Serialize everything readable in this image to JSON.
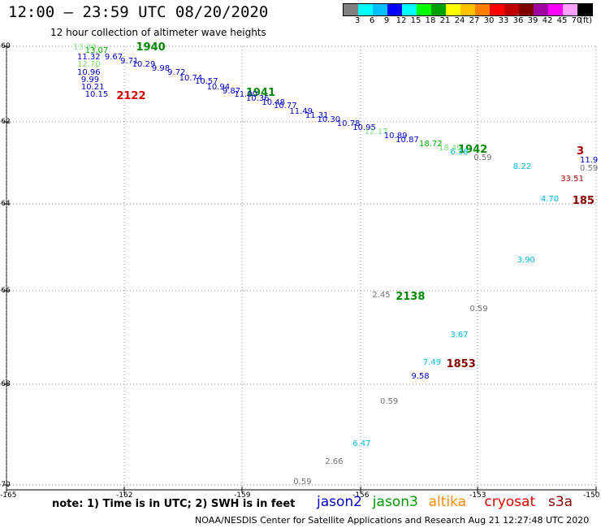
{
  "header": {
    "title": "12:00 – 23:59 UTC 08/20/2020",
    "subtitle": "12 hour collection of altimeter wave heights"
  },
  "legend": {
    "colors": [
      "#808080",
      "#00ffff",
      "#00bfff",
      "#0000ff",
      "#00ffff",
      "#00ff00",
      "#00a000",
      "#ffff00",
      "#ffc000",
      "#ff8000",
      "#ff0000",
      "#c00000",
      "#800000",
      "#a000a0",
      "#ff00ff",
      "#ffa0ff",
      "#000000"
    ],
    "labels": [
      "3",
      "6",
      "9",
      "12",
      "15",
      "18",
      "21",
      "24",
      "27",
      "30",
      "33",
      "36",
      "39",
      "42",
      "45",
      "70"
    ],
    "unit": "(ft)"
  },
  "axes": {
    "x_ticks": [
      "-165",
      "-162",
      "-159",
      "-156",
      "-153",
      "-150"
    ],
    "y_ticks": [
      "-60",
      "-62",
      "-64",
      "-66",
      "-68",
      "-70"
    ]
  },
  "annotations": [
    {
      "text": "13.80",
      "x": -163.3,
      "y": -60.05,
      "color": "#88dd88",
      "big": false
    },
    {
      "text": "13.07",
      "x": -163.0,
      "y": -60.12,
      "color": "#00aa00",
      "big": false
    },
    {
      "text": "1940",
      "x": -161.7,
      "y": -60.0,
      "color": "#008800",
      "big": true
    },
    {
      "text": "11.32",
      "x": -163.2,
      "y": -60.3,
      "color": "#0000cc",
      "big": false
    },
    {
      "text": "9.67",
      "x": -162.5,
      "y": -60.3,
      "color": "#0000cc",
      "big": false
    },
    {
      "text": "9.71",
      "x": -162.1,
      "y": -60.4,
      "color": "#0000cc",
      "big": false
    },
    {
      "text": "10.29",
      "x": -161.8,
      "y": -60.5,
      "color": "#0000cc",
      "big": false
    },
    {
      "text": "12.70",
      "x": -163.2,
      "y": -60.5,
      "color": "#77dd77",
      "big": false
    },
    {
      "text": "9.98",
      "x": -161.3,
      "y": -60.6,
      "color": "#0000cc",
      "big": false
    },
    {
      "text": "9.72",
      "x": -160.9,
      "y": -60.7,
      "color": "#0000cc",
      "big": false
    },
    {
      "text": "10.96",
      "x": -163.2,
      "y": -60.7,
      "color": "#0000cc",
      "big": false
    },
    {
      "text": "10.74",
      "x": -160.6,
      "y": -60.85,
      "color": "#0000cc",
      "big": false
    },
    {
      "text": "10.57",
      "x": -160.2,
      "y": -60.95,
      "color": "#0000cc",
      "big": false
    },
    {
      "text": "9.99",
      "x": -163.1,
      "y": -60.9,
      "color": "#0000cc",
      "big": false
    },
    {
      "text": "10.94",
      "x": -159.9,
      "y": -61.1,
      "color": "#0000cc",
      "big": false
    },
    {
      "text": "10.21",
      "x": -163.1,
      "y": -61.1,
      "color": "#0000cc",
      "big": false
    },
    {
      "text": "9.87",
      "x": -159.5,
      "y": -61.2,
      "color": "#0000cc",
      "big": false
    },
    {
      "text": "1941",
      "x": -158.9,
      "y": -61.2,
      "color": "#008800",
      "big": true
    },
    {
      "text": "11.00",
      "x": -159.2,
      "y": -61.3,
      "color": "#0000cc",
      "big": false
    },
    {
      "text": "10.15",
      "x": -163.0,
      "y": -61.3,
      "color": "#0000cc",
      "big": false
    },
    {
      "text": "2122",
      "x": -162.2,
      "y": -61.3,
      "color": "#dd0000",
      "big": true
    },
    {
      "text": "10.36",
      "x": -158.9,
      "y": -61.4,
      "color": "#0000cc",
      "big": false
    },
    {
      "text": "10.48",
      "x": -158.5,
      "y": -61.5,
      "color": "#0000cc",
      "big": false
    },
    {
      "text": "10.77",
      "x": -158.2,
      "y": -61.6,
      "color": "#0000cc",
      "big": false
    },
    {
      "text": "11.49",
      "x": -157.8,
      "y": -61.75,
      "color": "#0000cc",
      "big": false
    },
    {
      "text": "11.31",
      "x": -157.4,
      "y": -61.85,
      "color": "#0000cc",
      "big": false
    },
    {
      "text": "10.30",
      "x": -157.1,
      "y": -61.95,
      "color": "#0000cc",
      "big": false
    },
    {
      "text": "10.78",
      "x": -156.6,
      "y": -62.05,
      "color": "#0000cc",
      "big": false
    },
    {
      "text": "10.95",
      "x": -156.2,
      "y": -62.15,
      "color": "#0000cc",
      "big": false
    },
    {
      "text": "12.17",
      "x": -155.9,
      "y": -62.25,
      "color": "#77dd77",
      "big": false
    },
    {
      "text": "10.89",
      "x": -155.4,
      "y": -62.35,
      "color": "#0000cc",
      "big": false
    },
    {
      "text": "10.87",
      "x": -155.1,
      "y": -62.45,
      "color": "#0000cc",
      "big": false
    },
    {
      "text": "18.72",
      "x": -154.5,
      "y": -62.55,
      "color": "#00aa00",
      "big": false
    },
    {
      "text": "18.49",
      "x": -154.0,
      "y": -62.65,
      "color": "#77dd77",
      "big": false
    },
    {
      "text": "1942",
      "x": -153.5,
      "y": -62.65,
      "color": "#008800",
      "big": true
    },
    {
      "text": "6.38",
      "x": -153.7,
      "y": -62.75,
      "color": "#00bbdd",
      "big": false
    },
    {
      "text": "0.59",
      "x": -153.1,
      "y": -62.9,
      "color": "#707070",
      "big": false
    },
    {
      "text": "8.22",
      "x": -152.1,
      "y": -63.1,
      "color": "#00bbdd",
      "big": false
    },
    {
      "text": "3",
      "x": -150.1,
      "y": -62.7,
      "color": "#aa0000",
      "big": true
    },
    {
      "text": "11.9",
      "x": -150.4,
      "y": -62.95,
      "color": "#0000cc",
      "big": false
    },
    {
      "text": "0.59",
      "x": -150.4,
      "y": -63.15,
      "color": "#707070",
      "big": false
    },
    {
      "text": "33.51",
      "x": -150.9,
      "y": -63.4,
      "color": "#aa0000",
      "big": false
    },
    {
      "text": "4.70",
      "x": -151.4,
      "y": -63.9,
      "color": "#00bbdd",
      "big": false
    },
    {
      "text": "185",
      "x": -150.6,
      "y": -63.9,
      "color": "#880000",
      "big": true
    },
    {
      "text": "3.90",
      "x": -152.0,
      "y": -65.3,
      "color": "#00bbdd",
      "big": false
    },
    {
      "text": "2.45",
      "x": -155.7,
      "y": -66.1,
      "color": "#707070",
      "big": false
    },
    {
      "text": "2138",
      "x": -155.1,
      "y": -66.1,
      "color": "#008800",
      "big": true
    },
    {
      "text": "0.59",
      "x": -153.2,
      "y": -66.4,
      "color": "#707070",
      "big": false
    },
    {
      "text": "3.67",
      "x": -153.7,
      "y": -66.95,
      "color": "#00bbdd",
      "big": false
    },
    {
      "text": "7.49",
      "x": -154.4,
      "y": -67.55,
      "color": "#00bbdd",
      "big": false
    },
    {
      "text": "1853",
      "x": -153.8,
      "y": -67.55,
      "color": "#880000",
      "big": true
    },
    {
      "text": "9.58",
      "x": -154.7,
      "y": -67.85,
      "color": "#0000cc",
      "big": false
    },
    {
      "text": "0.59",
      "x": -155.5,
      "y": -68.35,
      "color": "#707070",
      "big": false
    },
    {
      "text": "6.47",
      "x": -156.2,
      "y": -69.2,
      "color": "#00bbdd",
      "big": false
    },
    {
      "text": "2.66",
      "x": -156.9,
      "y": -69.55,
      "color": "#707070",
      "big": false
    },
    {
      "text": "0.59",
      "x": -157.7,
      "y": -69.95,
      "color": "#707070",
      "big": false
    }
  ],
  "note": "note: 1) Time is in UTC; 2) SWH is in feet",
  "satellites": [
    {
      "name": "jason2",
      "color": "#0000cc"
    },
    {
      "name": "jason3",
      "color": "#009900"
    },
    {
      "name": "altika",
      "color": "#ff8800"
    },
    {
      "name": "cryosat",
      "color": "#dd0000"
    },
    {
      "name": "s3a",
      "color": "#880000"
    }
  ],
  "footer": "NOAA/NESDIS Center for Satellite Applications and Research   Aug 21 12:27:48 UTC 2020"
}
